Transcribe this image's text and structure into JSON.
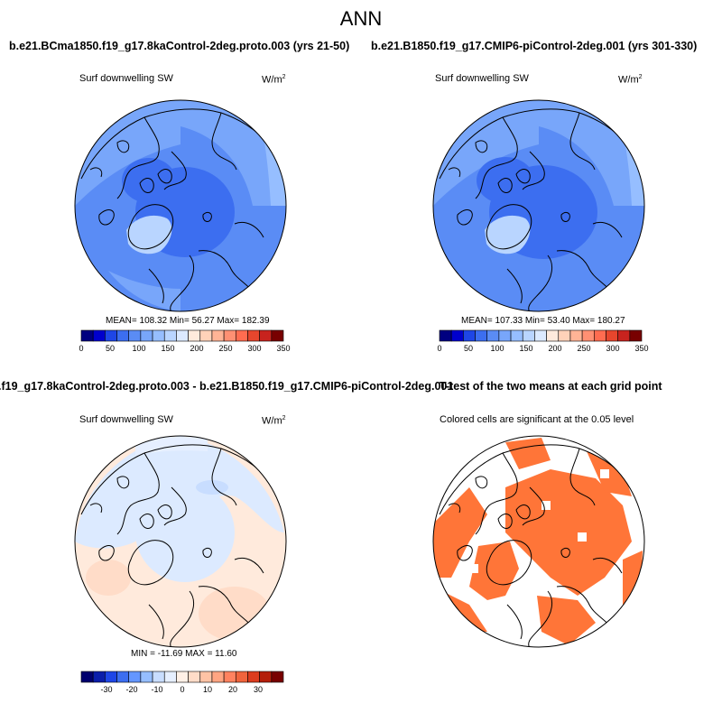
{
  "title": "ANN",
  "colors": {
    "land": "#ffffff",
    "coast": "#000000",
    "seq_palette": [
      "#000080",
      "#0000cd",
      "#1e46e6",
      "#3c6ef0",
      "#5a8cf5",
      "#78a6fa",
      "#96beff",
      "#b9d5ff",
      "#dceaff",
      "#ffeadc",
      "#ffd2b9",
      "#ffb496",
      "#ff9073",
      "#ff6c50",
      "#e6462d",
      "#c8231e",
      "#780000"
    ],
    "div_palette": [
      "#00006e",
      "#0a1eaa",
      "#1e46e6",
      "#3c6ef0",
      "#6496ff",
      "#96beff",
      "#c8ddff",
      "#e6efff",
      "#fff0e6",
      "#ffdcc8",
      "#ffc3a5",
      "#ffa582",
      "#ff825f",
      "#f0643c",
      "#dc3c1e",
      "#b41e0a",
      "#780000"
    ],
    "signif": "#ff7538"
  },
  "chart_data": [
    {
      "type": "polar-map",
      "title": "b.e21.BCma1850.f19_g17.8kaControl-2deg.proto.003 (yrs 21-50)",
      "variable": "Surf downwelling SW",
      "units_base": "W/m",
      "units_exp": "2",
      "stats": "MEAN= 108.32  Min=  56.27  Max= 182.39",
      "mean": 108.32,
      "min": 56.27,
      "max": 182.39,
      "colorbar_ticks": [
        "0",
        "50",
        "100",
        "150",
        "200",
        "250",
        "300",
        "350"
      ],
      "colorbar_range": [
        0,
        350
      ]
    },
    {
      "type": "polar-map",
      "title": "b.e21.B1850.f19_g17.CMIP6-piControl-2deg.001 (yrs 301-330)",
      "variable": "Surf downwelling SW",
      "units_base": "W/m",
      "units_exp": "2",
      "stats": "MEAN= 107.33  Min=  53.40  Max= 180.27",
      "mean": 107.33,
      "min": 53.4,
      "max": 180.27,
      "colorbar_ticks": [
        "0",
        "50",
        "100",
        "150",
        "200",
        "250",
        "300",
        "350"
      ],
      "colorbar_range": [
        0,
        350
      ]
    },
    {
      "type": "polar-map-difference",
      "title": ".f19_g17.8kaControl-2deg.proto.003 - b.e21.B1850.f19_g17.CMIP6-piControl-2deg.001",
      "variable": "Surf downwelling SW",
      "units_base": "W/m",
      "units_exp": "2",
      "stats": "MIN = -11.69 MAX =  11.60",
      "min": -11.69,
      "max": 11.6,
      "colorbar_ticks": [
        "-30",
        "-20",
        "-10",
        "0",
        "10",
        "20",
        "30"
      ],
      "colorbar_range": [
        -40,
        40
      ]
    },
    {
      "type": "polar-map-significance",
      "title": "T-test of the two means at each grid point",
      "subtitle": "Colored cells are significant at the 0.05 level",
      "significance_level": 0.05
    }
  ]
}
